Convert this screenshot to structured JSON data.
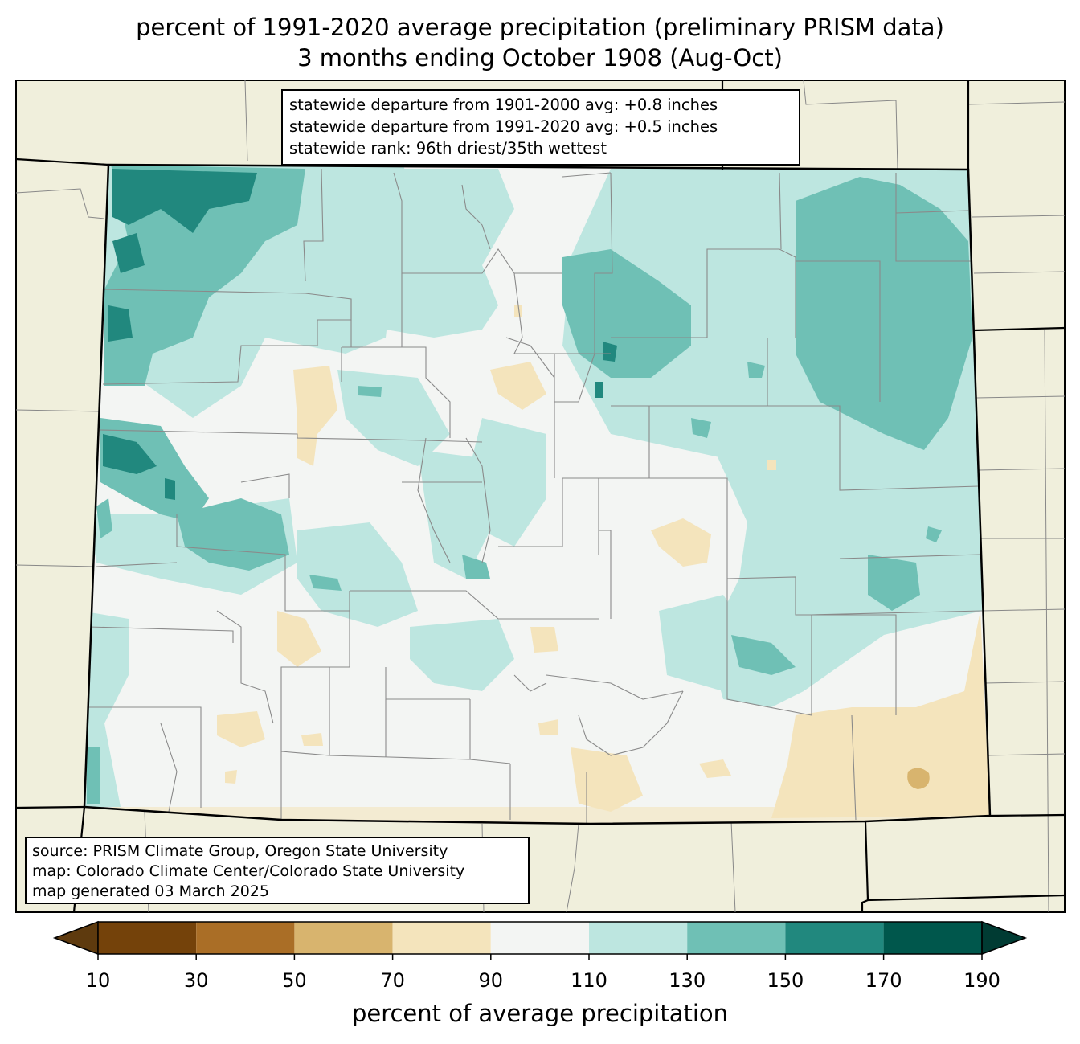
{
  "title": {
    "line1": "percent of 1991-2020 average precipitation (preliminary PRISM data)",
    "line2": "3 months ending October 1908 (Aug-Oct)"
  },
  "stats": {
    "line1": "statewide departure from 1901-2000 avg: +0.8 inches",
    "line2": "statewide departure from 1991-2020 avg: +0.5 inches",
    "line3": "statewide rank: 96th driest/35th wettest"
  },
  "source": {
    "line1": "source: PRISM Climate Group, Oregon State University",
    "line2": "map: Colorado Climate Center/Colorado State University",
    "line3": "map generated 03 March 2025"
  },
  "colorbar": {
    "label": "percent of average precipitation",
    "ticks": [
      "10",
      "30",
      "50",
      "70",
      "90",
      "110",
      "130",
      "150",
      "170",
      "190"
    ],
    "colors": [
      "#5e3a0e",
      "#74420a",
      "#aa6e26",
      "#d8b46e",
      "#f4e4bc",
      "#f3f5f3",
      "#bde6e0",
      "#6fc0b5",
      "#21887e",
      "#00574c",
      "#003b33"
    ]
  },
  "colors": {
    "background_land": "#f0efdc",
    "state_border": "#000000",
    "county_border": "#888888"
  }
}
